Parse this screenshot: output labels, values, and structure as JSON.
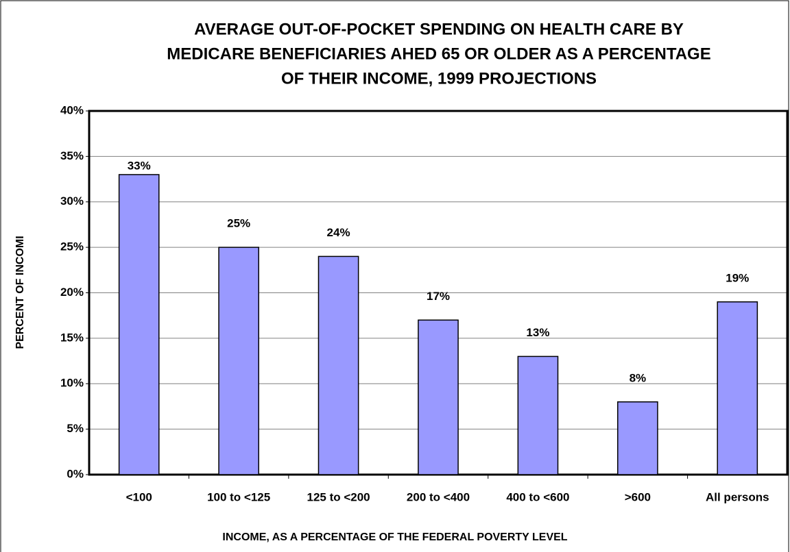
{
  "chart_data": {
    "type": "bar",
    "title": [
      "AVERAGE OUT-OF-POCKET SPENDING ON HEALTH CARE BY",
      "MEDICARE BENEFICIARIES AHED 65 OR OLDER AS A PERCENTAGE",
      "OF THEIR INCOME, 1999 PROJECTIONS"
    ],
    "x_label": "INCOME, AS A PERCENTAGE OF THE FEDERAL POVERTY LEVEL",
    "y_label": "PERCENT OF INCOMI",
    "categories": [
      "<100",
      "100 to <125",
      "125 to <200",
      "200 to <400",
      "400 to <600",
      ">600",
      "All persons"
    ],
    "values": [
      33,
      25,
      24,
      17,
      13,
      8,
      19
    ],
    "value_labels": [
      "33%",
      "25%",
      "24%",
      "17%",
      "13%",
      "8%",
      "19%"
    ],
    "color": "#9999ff",
    "ylim": [
      0,
      40
    ],
    "yticks": [
      {
        "value": 0,
        "label": "0%"
      },
      {
        "value": 5,
        "label": "5%"
      },
      {
        "value": 10,
        "label": "10%"
      },
      {
        "value": 15,
        "label": "15%"
      },
      {
        "value": 20,
        "label": "20%"
      },
      {
        "value": 25,
        "label": "25%"
      },
      {
        "value": 30,
        "label": "30%"
      },
      {
        "value": 35,
        "label": "35%"
      },
      {
        "value": 40,
        "label": "40%"
      }
    ],
    "grid": true
  }
}
